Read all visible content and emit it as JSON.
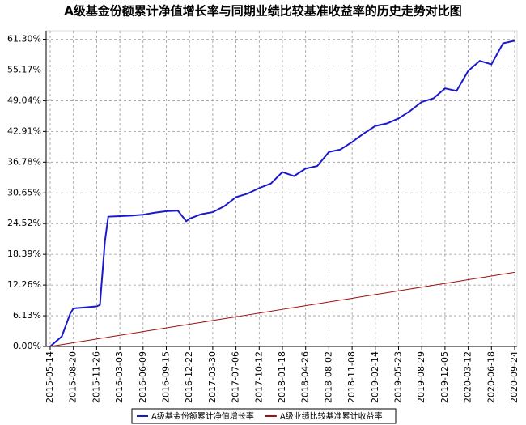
{
  "chart_data": {
    "type": "line",
    "title": "A级基金份额累计净值增长率与同期业绩比较基准收益率的历史走势对比图",
    "x": [
      "2015-05-14",
      "2015-07-02",
      "2015-08-06",
      "2015-08-20",
      "2015-10-08",
      "2015-11-26",
      "2015-12-10",
      "2015-12-31",
      "2016-01-14",
      "2016-03-03",
      "2016-04-21",
      "2016-06-09",
      "2016-07-28",
      "2016-09-15",
      "2016-11-03",
      "2016-12-08",
      "2016-12-22",
      "2017-02-09",
      "2017-03-30",
      "2017-05-18",
      "2017-07-06",
      "2017-08-24",
      "2017-10-12",
      "2017-11-30",
      "2018-01-18",
      "2018-03-08",
      "2018-04-26",
      "2018-06-14",
      "2018-08-02",
      "2018-09-20",
      "2018-11-08",
      "2018-12-27",
      "2019-02-14",
      "2019-04-04",
      "2019-05-23",
      "2019-07-11",
      "2019-08-29",
      "2019-10-17",
      "2019-12-05",
      "2020-01-23",
      "2020-03-12",
      "2020-04-30",
      "2020-06-18",
      "2020-08-06",
      "2020-09-24"
    ],
    "series": [
      {
        "name": "A级基金份额累计净值增长率",
        "color": "#1a1acc",
        "values": [
          0,
          2.0,
          6.5,
          7.6,
          7.8,
          8.0,
          8.3,
          21.0,
          25.9,
          26.0,
          26.1,
          26.3,
          26.7,
          27.0,
          27.1,
          25.0,
          25.5,
          26.4,
          26.8,
          28.0,
          29.8,
          30.5,
          31.6,
          32.5,
          34.8,
          34.0,
          35.5,
          36.0,
          38.8,
          39.3,
          40.8,
          42.5,
          44.0,
          44.5,
          45.5,
          47.0,
          48.8,
          49.5,
          51.5,
          51.0,
          55.0,
          57.0,
          56.3,
          60.5,
          61.0
        ]
      },
      {
        "name": "A级业绩比较基准累计收益率",
        "color": "#a01010",
        "values": [
          0,
          0.37,
          0.63,
          0.74,
          1.11,
          1.48,
          1.59,
          1.74,
          1.85,
          2.22,
          2.59,
          2.96,
          3.33,
          3.7,
          4.07,
          4.33,
          4.44,
          4.81,
          5.18,
          5.55,
          5.92,
          6.29,
          6.66,
          7.03,
          7.4,
          7.77,
          8.14,
          8.51,
          8.88,
          9.25,
          9.62,
          9.99,
          10.36,
          10.73,
          11.1,
          11.47,
          11.84,
          12.21,
          12.58,
          12.95,
          13.32,
          13.69,
          14.06,
          14.43,
          14.8
        ]
      }
    ],
    "xlim": [
      "2015-05-14",
      "2020-09-24"
    ],
    "xticks": [
      "2015-05-14",
      "2015-08-20",
      "2015-11-26",
      "2016-03-03",
      "2016-06-09",
      "2016-09-15",
      "2016-12-22",
      "2017-03-30",
      "2017-07-06",
      "2017-10-12",
      "2018-01-18",
      "2018-04-26",
      "2018-08-02",
      "2018-11-08",
      "2019-02-14",
      "2019-05-23",
      "2019-08-29",
      "2019-12-05",
      "2020-03-12",
      "2020-06-18",
      "2020-09-24"
    ],
    "ylim": [
      0,
      63
    ],
    "yticks": [
      {
        "value": 0,
        "label": "0.00%"
      },
      {
        "value": 6.13,
        "label": "6.13%"
      },
      {
        "value": 12.26,
        "label": "12.26%"
      },
      {
        "value": 18.39,
        "label": "18.39%"
      },
      {
        "value": 24.52,
        "label": "24.52%"
      },
      {
        "value": 30.65,
        "label": "30.65%"
      },
      {
        "value": 36.78,
        "label": "36.78%"
      },
      {
        "value": 42.91,
        "label": "42.91%"
      },
      {
        "value": 49.04,
        "label": "49.04%"
      },
      {
        "value": 55.17,
        "label": "55.17%"
      },
      {
        "value": 61.3,
        "label": "61.30%"
      }
    ],
    "grid": true
  }
}
